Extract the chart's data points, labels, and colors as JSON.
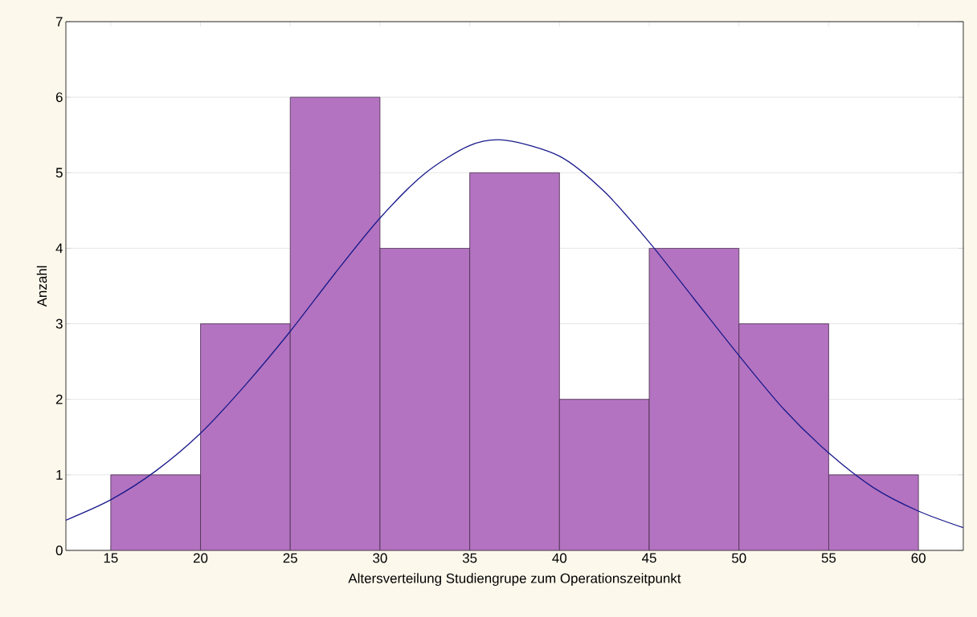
{
  "chart_data": {
    "type": "histogram",
    "xlabel": "Altersverteilung Studiengrupe zum Operationszeitpunkt",
    "ylabel": "Anzahl",
    "bins": [
      15,
      20,
      25,
      30,
      35,
      40,
      45,
      50,
      55,
      60
    ],
    "values": [
      1,
      3,
      6,
      4,
      5,
      2,
      4,
      3,
      1
    ],
    "color": "#b373c0",
    "series": [
      {
        "type": "line",
        "color": "#1a1a8c",
        "x": [
          12.5,
          15,
          17.5,
          20,
          22.5,
          25,
          27.5,
          30,
          32.5,
          35,
          37,
          40,
          42.5,
          45,
          47.5,
          50,
          52.5,
          55,
          57.5,
          60,
          62.5
        ],
        "values": [
          0.4,
          0.67,
          1.05,
          1.55,
          2.19,
          2.9,
          3.67,
          4.4,
          4.99,
          5.36,
          5.43,
          5.22,
          4.75,
          4.08,
          3.33,
          2.58,
          1.87,
          1.29,
          0.83,
          0.52,
          0.3
        ]
      }
    ],
    "xlim": [
      12.5,
      62.5
    ],
    "ylim": [
      0,
      7
    ],
    "xticks": [
      15,
      20,
      25,
      30,
      35,
      40,
      45,
      50,
      55,
      60
    ],
    "yticks": [
      0,
      1,
      2,
      3,
      4,
      5,
      6,
      7
    ],
    "grid": "y",
    "marker": "none",
    "line_style": "solid"
  }
}
